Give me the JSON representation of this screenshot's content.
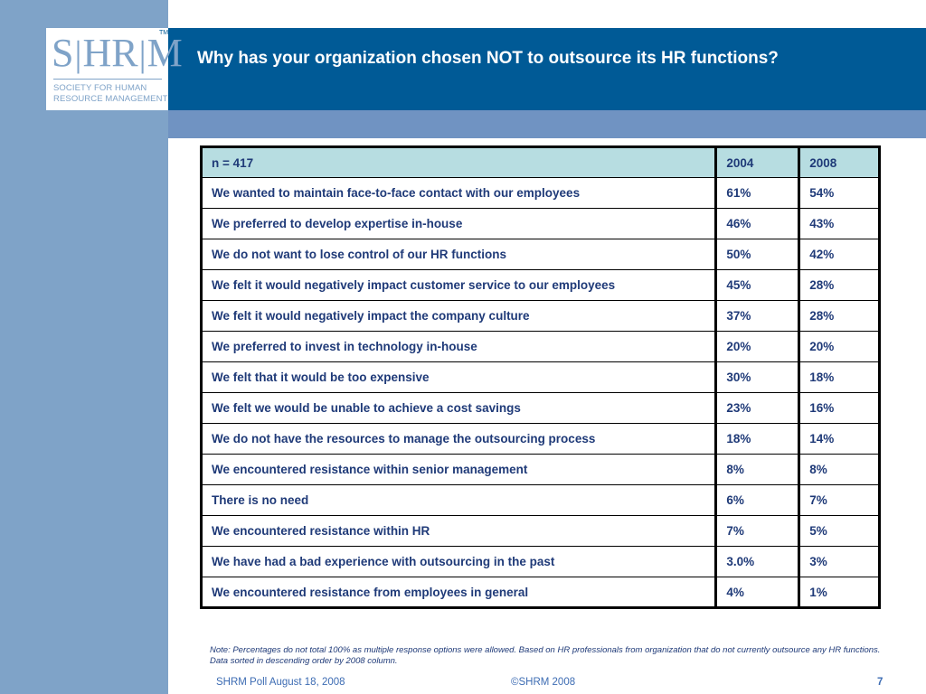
{
  "logo": {
    "letters_left": "S",
    "letters_mid": "HR",
    "letters_right": "M",
    "tm": "TM",
    "line1": "SOCIETY FOR HUMAN",
    "line2": "RESOURCE MANAGEMENT"
  },
  "slide": {
    "title": "Why has your organization chosen NOT to outsource its HR functions?"
  },
  "table": {
    "header": {
      "label": "n = 417",
      "col1": "2004",
      "col2": "2008"
    },
    "rows": [
      {
        "label": "We wanted to maintain face-to-face contact with our employees",
        "v2004": "61%",
        "v2008": "54%"
      },
      {
        "label": "We preferred to develop expertise in-house",
        "v2004": "46%",
        "v2008": "43%"
      },
      {
        "label": "We do not want to lose control of our HR functions",
        "v2004": "50%",
        "v2008": "42%"
      },
      {
        "label": "We felt it would negatively impact customer service to our employees",
        "v2004": "45%",
        "v2008": "28%"
      },
      {
        "label": "We felt it would negatively impact the company culture",
        "v2004": "37%",
        "v2008": "28%"
      },
      {
        "label": "We preferred to invest in technology in-house",
        "v2004": "20%",
        "v2008": "20%"
      },
      {
        "label": "We felt that it would be too expensive",
        "v2004": "30%",
        "v2008": "18%"
      },
      {
        "label": "We felt we would be unable to achieve a cost savings",
        "v2004": "23%",
        "v2008": "16%"
      },
      {
        "label": "We do not have the resources to manage the outsourcing process",
        "v2004": "18%",
        "v2008": "14%"
      },
      {
        "label": "We encountered resistance within senior management",
        "v2004": "8%",
        "v2008": "8%"
      },
      {
        "label": "There is no need",
        "v2004": "6%",
        "v2008": "7%"
      },
      {
        "label": "We encountered resistance within HR",
        "v2004": "7%",
        "v2008": "5%"
      },
      {
        "label": "We have had a bad experience with outsourcing in the past",
        "v2004": "3.0%",
        "v2008": "3%"
      },
      {
        "label": "We encountered resistance from employees in general",
        "v2004": "4%",
        "v2008": "1%"
      }
    ]
  },
  "note": "Note:  Percentages do not total 100% as multiple response options were allowed. Based on HR professionals from organization that do not currently outsource any HR functions. Data sorted in descending order by 2008 column.",
  "footer": {
    "left": "SHRM Poll August 18, 2008",
    "center": "©SHRM 2008",
    "page": "7"
  }
}
